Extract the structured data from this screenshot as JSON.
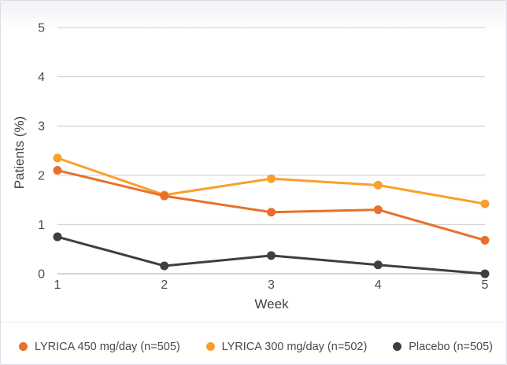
{
  "chart_data": {
    "type": "line",
    "title": "",
    "xlabel": "Week",
    "ylabel": "Patients (%)",
    "x": [
      1,
      2,
      3,
      4,
      5
    ],
    "ylim": [
      0,
      5
    ],
    "yticks": [
      0,
      1,
      2,
      3,
      4,
      5
    ],
    "grid": true,
    "legend_position": "bottom",
    "series": [
      {
        "name": "LYRICA 450 mg/day (n=505)",
        "color": "#E8702B",
        "values": [
          2.1,
          1.58,
          1.25,
          1.3,
          0.68
        ]
      },
      {
        "name": "LYRICA 300 mg/day (n=502)",
        "color": "#F9A02C",
        "values": [
          2.35,
          1.6,
          1.93,
          1.8,
          1.42
        ]
      },
      {
        "name": "Placebo (n=505)",
        "color": "#3F3F3F",
        "values": [
          0.75,
          0.16,
          0.37,
          0.18,
          0.0
        ]
      }
    ]
  },
  "colors": {
    "gridline": "#cdcdcd",
    "baseline": "#a9a9a9",
    "tick_text": "#4d4d4d"
  }
}
